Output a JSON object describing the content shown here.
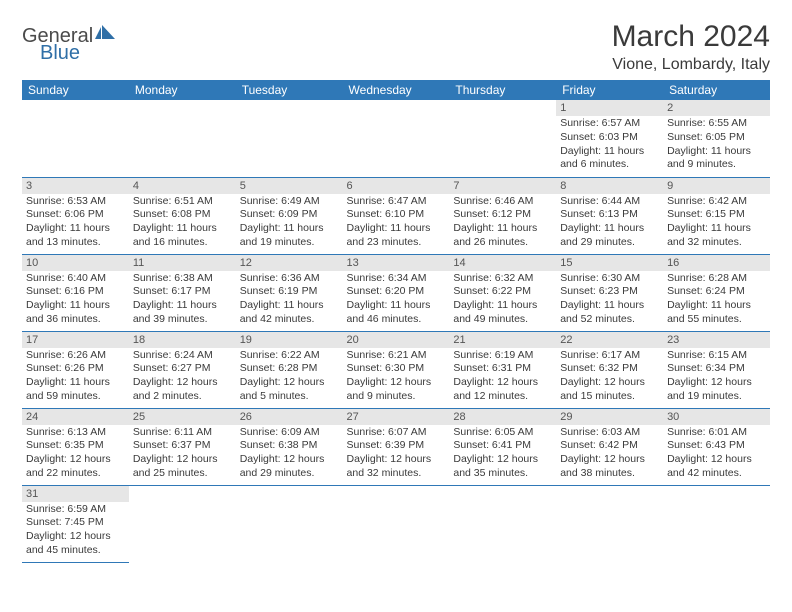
{
  "brand": {
    "part1": "General",
    "part2": "Blue"
  },
  "title": "March 2024",
  "location": "Vione, Lombardy, Italy",
  "colors": {
    "header_bg": "#2f78b7",
    "header_text": "#ffffff",
    "daynum_bg": "#e6e6e6",
    "border": "#2f78b7",
    "body_text": "#3a3a3a"
  },
  "weekdays": [
    "Sunday",
    "Monday",
    "Tuesday",
    "Wednesday",
    "Thursday",
    "Friday",
    "Saturday"
  ],
  "weeks": [
    [
      null,
      null,
      null,
      null,
      null,
      {
        "n": "1",
        "sr": "Sunrise: 6:57 AM",
        "ss": "Sunset: 6:03 PM",
        "dl": "Daylight: 11 hours and 6 minutes."
      },
      {
        "n": "2",
        "sr": "Sunrise: 6:55 AM",
        "ss": "Sunset: 6:05 PM",
        "dl": "Daylight: 11 hours and 9 minutes."
      }
    ],
    [
      {
        "n": "3",
        "sr": "Sunrise: 6:53 AM",
        "ss": "Sunset: 6:06 PM",
        "dl": "Daylight: 11 hours and 13 minutes."
      },
      {
        "n": "4",
        "sr": "Sunrise: 6:51 AM",
        "ss": "Sunset: 6:08 PM",
        "dl": "Daylight: 11 hours and 16 minutes."
      },
      {
        "n": "5",
        "sr": "Sunrise: 6:49 AM",
        "ss": "Sunset: 6:09 PM",
        "dl": "Daylight: 11 hours and 19 minutes."
      },
      {
        "n": "6",
        "sr": "Sunrise: 6:47 AM",
        "ss": "Sunset: 6:10 PM",
        "dl": "Daylight: 11 hours and 23 minutes."
      },
      {
        "n": "7",
        "sr": "Sunrise: 6:46 AM",
        "ss": "Sunset: 6:12 PM",
        "dl": "Daylight: 11 hours and 26 minutes."
      },
      {
        "n": "8",
        "sr": "Sunrise: 6:44 AM",
        "ss": "Sunset: 6:13 PM",
        "dl": "Daylight: 11 hours and 29 minutes."
      },
      {
        "n": "9",
        "sr": "Sunrise: 6:42 AM",
        "ss": "Sunset: 6:15 PM",
        "dl": "Daylight: 11 hours and 32 minutes."
      }
    ],
    [
      {
        "n": "10",
        "sr": "Sunrise: 6:40 AM",
        "ss": "Sunset: 6:16 PM",
        "dl": "Daylight: 11 hours and 36 minutes."
      },
      {
        "n": "11",
        "sr": "Sunrise: 6:38 AM",
        "ss": "Sunset: 6:17 PM",
        "dl": "Daylight: 11 hours and 39 minutes."
      },
      {
        "n": "12",
        "sr": "Sunrise: 6:36 AM",
        "ss": "Sunset: 6:19 PM",
        "dl": "Daylight: 11 hours and 42 minutes."
      },
      {
        "n": "13",
        "sr": "Sunrise: 6:34 AM",
        "ss": "Sunset: 6:20 PM",
        "dl": "Daylight: 11 hours and 46 minutes."
      },
      {
        "n": "14",
        "sr": "Sunrise: 6:32 AM",
        "ss": "Sunset: 6:22 PM",
        "dl": "Daylight: 11 hours and 49 minutes."
      },
      {
        "n": "15",
        "sr": "Sunrise: 6:30 AM",
        "ss": "Sunset: 6:23 PM",
        "dl": "Daylight: 11 hours and 52 minutes."
      },
      {
        "n": "16",
        "sr": "Sunrise: 6:28 AM",
        "ss": "Sunset: 6:24 PM",
        "dl": "Daylight: 11 hours and 55 minutes."
      }
    ],
    [
      {
        "n": "17",
        "sr": "Sunrise: 6:26 AM",
        "ss": "Sunset: 6:26 PM",
        "dl": "Daylight: 11 hours and 59 minutes."
      },
      {
        "n": "18",
        "sr": "Sunrise: 6:24 AM",
        "ss": "Sunset: 6:27 PM",
        "dl": "Daylight: 12 hours and 2 minutes."
      },
      {
        "n": "19",
        "sr": "Sunrise: 6:22 AM",
        "ss": "Sunset: 6:28 PM",
        "dl": "Daylight: 12 hours and 5 minutes."
      },
      {
        "n": "20",
        "sr": "Sunrise: 6:21 AM",
        "ss": "Sunset: 6:30 PM",
        "dl": "Daylight: 12 hours and 9 minutes."
      },
      {
        "n": "21",
        "sr": "Sunrise: 6:19 AM",
        "ss": "Sunset: 6:31 PM",
        "dl": "Daylight: 12 hours and 12 minutes."
      },
      {
        "n": "22",
        "sr": "Sunrise: 6:17 AM",
        "ss": "Sunset: 6:32 PM",
        "dl": "Daylight: 12 hours and 15 minutes."
      },
      {
        "n": "23",
        "sr": "Sunrise: 6:15 AM",
        "ss": "Sunset: 6:34 PM",
        "dl": "Daylight: 12 hours and 19 minutes."
      }
    ],
    [
      {
        "n": "24",
        "sr": "Sunrise: 6:13 AM",
        "ss": "Sunset: 6:35 PM",
        "dl": "Daylight: 12 hours and 22 minutes."
      },
      {
        "n": "25",
        "sr": "Sunrise: 6:11 AM",
        "ss": "Sunset: 6:37 PM",
        "dl": "Daylight: 12 hours and 25 minutes."
      },
      {
        "n": "26",
        "sr": "Sunrise: 6:09 AM",
        "ss": "Sunset: 6:38 PM",
        "dl": "Daylight: 12 hours and 29 minutes."
      },
      {
        "n": "27",
        "sr": "Sunrise: 6:07 AM",
        "ss": "Sunset: 6:39 PM",
        "dl": "Daylight: 12 hours and 32 minutes."
      },
      {
        "n": "28",
        "sr": "Sunrise: 6:05 AM",
        "ss": "Sunset: 6:41 PM",
        "dl": "Daylight: 12 hours and 35 minutes."
      },
      {
        "n": "29",
        "sr": "Sunrise: 6:03 AM",
        "ss": "Sunset: 6:42 PM",
        "dl": "Daylight: 12 hours and 38 minutes."
      },
      {
        "n": "30",
        "sr": "Sunrise: 6:01 AM",
        "ss": "Sunset: 6:43 PM",
        "dl": "Daylight: 12 hours and 42 minutes."
      }
    ],
    [
      {
        "n": "31",
        "sr": "Sunrise: 6:59 AM",
        "ss": "Sunset: 7:45 PM",
        "dl": "Daylight: 12 hours and 45 minutes."
      },
      null,
      null,
      null,
      null,
      null,
      null
    ]
  ]
}
